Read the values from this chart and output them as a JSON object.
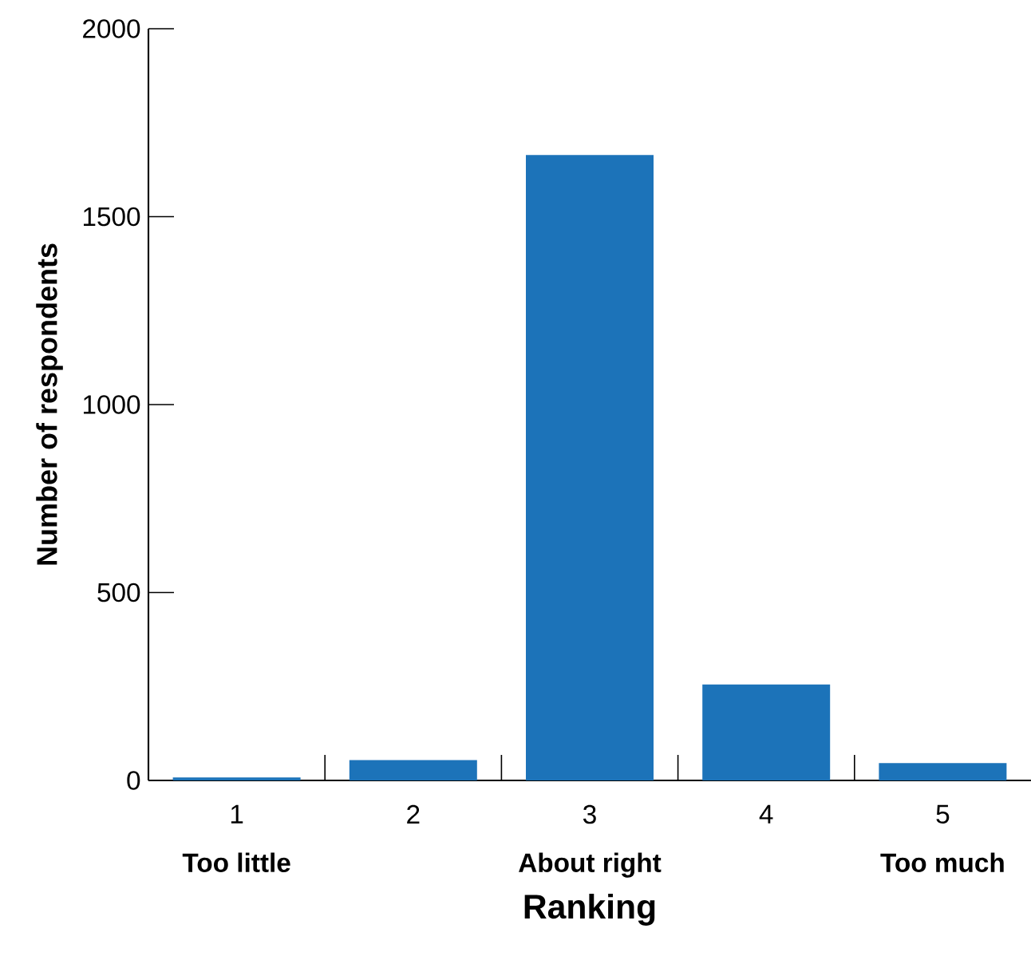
{
  "chart_data": {
    "type": "bar",
    "xlabel": "Ranking",
    "ylabel": "Number of respondents",
    "categories": [
      "1",
      "2",
      "3",
      "4",
      "5"
    ],
    "values": [
      8,
      54,
      1664,
      255,
      46
    ],
    "color": "#1c73b9",
    "ylim": [
      0,
      2000
    ],
    "yticks": [
      0,
      500,
      1000,
      1500,
      2000
    ],
    "grid": false,
    "annotations": [
      "Too little",
      "About right",
      "Too much"
    ]
  }
}
